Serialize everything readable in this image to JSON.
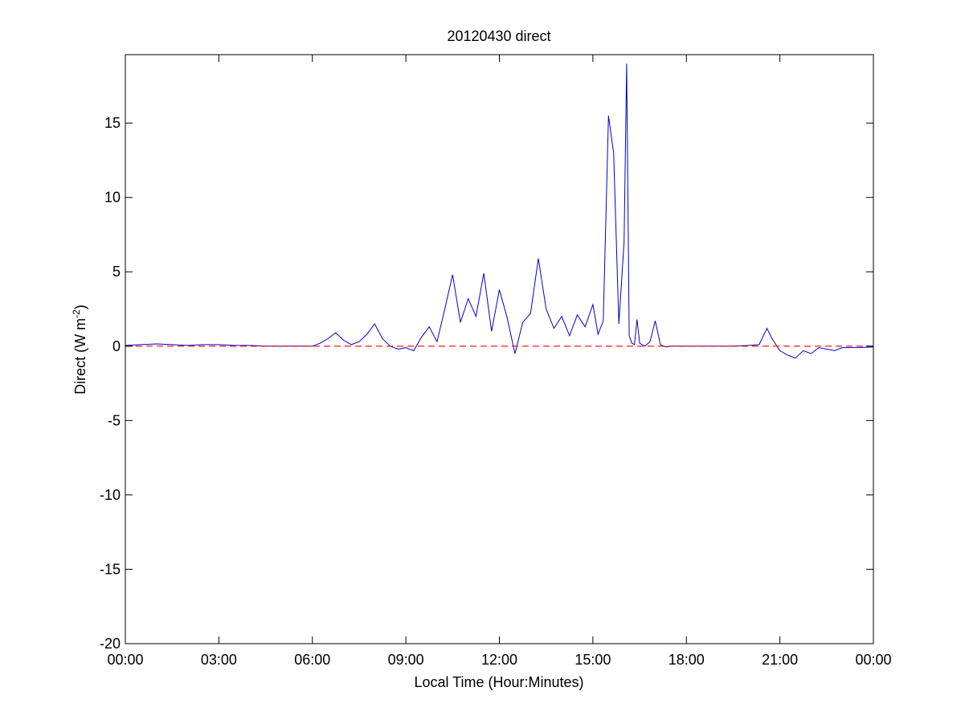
{
  "chart_data": {
    "type": "line",
    "title": "20120430 direct",
    "xlabel": "Local Time (Hour:Minutes)",
    "ylabel_main": "Direct (W m",
    "ylabel_sup": "-2",
    "ylabel_close": ")",
    "xlim": [
      "00:00",
      "24:00"
    ],
    "ylim": [
      -20,
      19.6
    ],
    "xticks": [
      "00:00",
      "03:00",
      "06:00",
      "09:00",
      "12:00",
      "15:00",
      "18:00",
      "21:00",
      "00:00"
    ],
    "yticks": [
      15,
      10,
      5,
      0,
      -5,
      -10,
      -15,
      -20
    ],
    "ytick_labels": [
      "15",
      "10",
      "5",
      "0",
      "-5",
      "-10",
      "-15",
      "-20"
    ],
    "grid": false,
    "series": [
      {
        "color": "#0000cc",
        "x": [
          "00:00",
          "00:30",
          "01:00",
          "01:30",
          "02:00",
          "02:30",
          "03:00",
          "03:30",
          "04:00",
          "04:30",
          "05:00",
          "05:30",
          "06:00",
          "06:15",
          "06:30",
          "06:45",
          "07:00",
          "07:15",
          "07:30",
          "07:45",
          "08:00",
          "08:15",
          "08:30",
          "08:45",
          "09:00",
          "09:15",
          "09:30",
          "09:45",
          "10:00",
          "10:15",
          "10:30",
          "10:45",
          "11:00",
          "11:15",
          "11:30",
          "11:45",
          "12:00",
          "12:15",
          "12:30",
          "12:45",
          "13:00",
          "13:15",
          "13:30",
          "13:45",
          "14:00",
          "14:15",
          "14:30",
          "14:45",
          "15:00",
          "15:10",
          "15:20",
          "15:30",
          "15:40",
          "15:50",
          "16:00",
          "16:05",
          "16:10",
          "16:15",
          "16:20",
          "16:25",
          "16:30",
          "16:40",
          "16:50",
          "17:00",
          "17:10",
          "17:20",
          "17:30",
          "17:40",
          "18:00",
          "18:30",
          "19:00",
          "19:30",
          "20:00",
          "20:20",
          "20:35",
          "20:45",
          "21:00",
          "21:15",
          "21:30",
          "21:45",
          "22:00",
          "22:15",
          "22:30",
          "22:45",
          "23:00",
          "23:30",
          "24:00"
        ],
        "y": [
          0.05,
          0.1,
          0.15,
          0.1,
          0.05,
          0.1,
          0.1,
          0.05,
          0.05,
          0.0,
          0.0,
          0.0,
          0.0,
          0.2,
          0.5,
          0.9,
          0.4,
          0.1,
          0.3,
          0.8,
          1.5,
          0.5,
          0.0,
          -0.2,
          -0.1,
          -0.3,
          0.6,
          1.3,
          0.3,
          2.5,
          4.8,
          1.6,
          3.2,
          2.0,
          4.9,
          1.0,
          3.8,
          1.9,
          -0.5,
          1.6,
          2.2,
          5.9,
          2.5,
          1.2,
          2.0,
          0.7,
          2.1,
          1.3,
          2.8,
          0.8,
          1.7,
          15.5,
          13.0,
          1.5,
          7.0,
          19.0,
          0.7,
          0.2,
          0.1,
          1.8,
          0.2,
          0.0,
          0.3,
          1.7,
          0.1,
          -0.05,
          0.0,
          0.0,
          0.0,
          0.0,
          0.0,
          0.0,
          0.05,
          0.1,
          1.2,
          0.5,
          -0.3,
          -0.6,
          -0.8,
          -0.3,
          -0.5,
          -0.1,
          -0.2,
          -0.3,
          -0.1,
          -0.1,
          -0.05
        ]
      },
      {
        "style": "dashed",
        "color": "#ff0000",
        "x": [
          "00:00",
          "24:00"
        ],
        "y": [
          0,
          0
        ]
      }
    ]
  }
}
